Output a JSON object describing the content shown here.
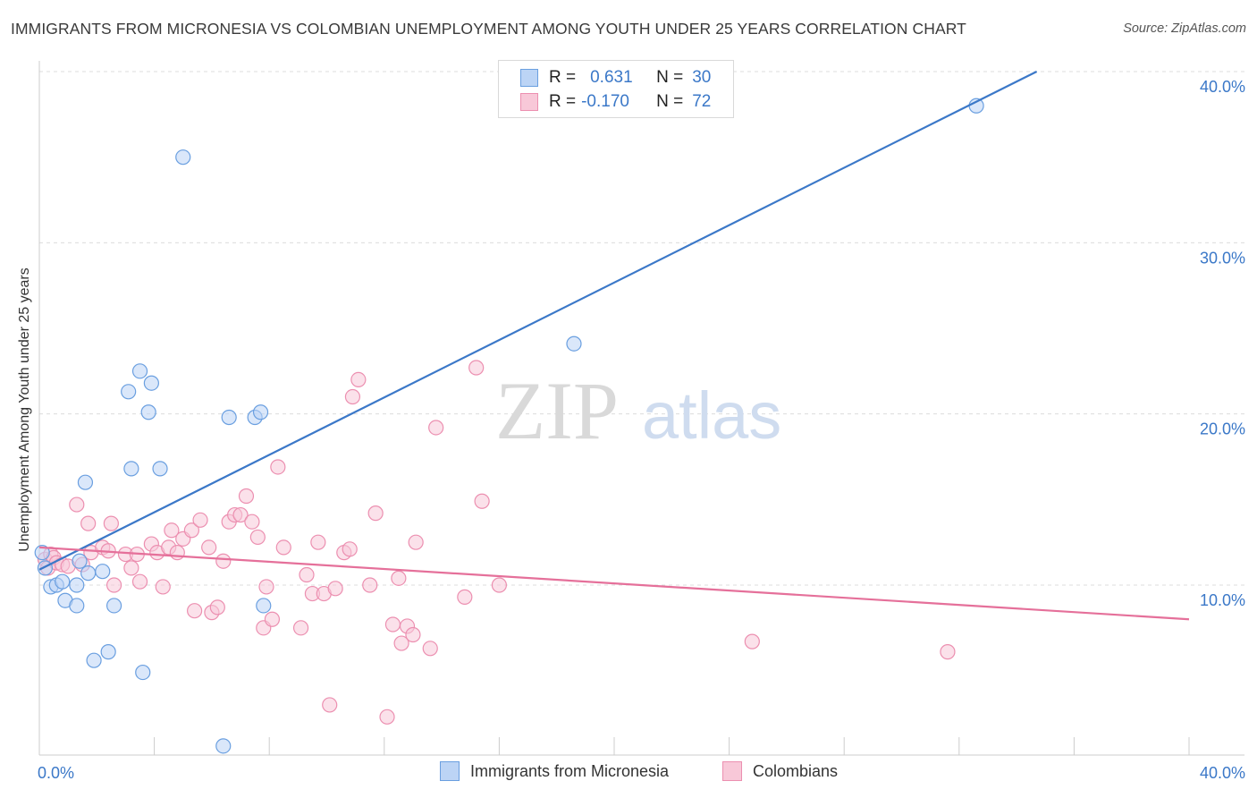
{
  "header": {
    "title": "IMMIGRANTS FROM MICRONESIA VS COLOMBIAN UNEMPLOYMENT AMONG YOUTH UNDER 25 YEARS CORRELATION CHART",
    "source": "Source: ZipAtlas.com"
  },
  "watermark": {
    "zip": "ZIP",
    "atlas": "atlas"
  },
  "legend": {
    "r_label": "R =",
    "n_label": "N =",
    "rows": [
      {
        "r": "0.631",
        "n": "30",
        "swatch_fill": "#bcd4f5",
        "swatch_stroke": "#6a9fe0"
      },
      {
        "r": "-0.170",
        "n": "72",
        "swatch_fill": "#f8c8d8",
        "swatch_stroke": "#ec8fb0"
      }
    ]
  },
  "chart_data": {
    "type": "scatter",
    "title": "IMMIGRANTS FROM MICRONESIA VS COLOMBIAN UNEMPLOYMENT AMONG YOUTH UNDER 25 YEARS CORRELATION CHART",
    "xlabel": "",
    "ylabel": "Unemployment Among Youth under 25 years",
    "xlim": [
      0,
      40
    ],
    "ylim": [
      0,
      41
    ],
    "x_tick_labels": [
      "0.0%",
      "40.0%"
    ],
    "y_ticks": [
      10,
      20,
      30,
      40
    ],
    "y_tick_labels": [
      "10.0%",
      "20.0%",
      "30.0%",
      "40.0%"
    ],
    "grid": "horizontal dashed",
    "legend_position": "top-center",
    "colors": {
      "micronesia": "#3b78c8",
      "colombians": "#e5709a"
    },
    "series": [
      {
        "name": "Immigrants from Micronesia",
        "color": "#6a9fe0",
        "fill": "#bcd4f5",
        "trend": [
          [
            0,
            10.9
          ],
          [
            34.7,
            40.0
          ]
        ],
        "points": [
          [
            0.1,
            11.9
          ],
          [
            0.2,
            11.0
          ],
          [
            0.4,
            9.9
          ],
          [
            0.6,
            10.0
          ],
          [
            0.8,
            10.2
          ],
          [
            0.9,
            9.1
          ],
          [
            1.3,
            10.0
          ],
          [
            1.3,
            8.8
          ],
          [
            1.4,
            11.4
          ],
          [
            1.6,
            16.0
          ],
          [
            1.7,
            10.7
          ],
          [
            1.9,
            5.6
          ],
          [
            2.2,
            10.8
          ],
          [
            2.4,
            6.1
          ],
          [
            2.6,
            8.8
          ],
          [
            3.1,
            21.3
          ],
          [
            3.2,
            16.8
          ],
          [
            3.5,
            22.5
          ],
          [
            3.6,
            4.9
          ],
          [
            3.8,
            20.1
          ],
          [
            3.9,
            21.8
          ],
          [
            4.2,
            16.8
          ],
          [
            5.0,
            35.0
          ],
          [
            6.4,
            0.6
          ],
          [
            6.6,
            19.8
          ],
          [
            7.5,
            19.8
          ],
          [
            7.7,
            20.1
          ],
          [
            7.8,
            8.8
          ],
          [
            18.6,
            24.1
          ],
          [
            32.6,
            38.0
          ]
        ]
      },
      {
        "name": "Colombians",
        "color": "#ec8fb0",
        "fill": "#f8c8d8",
        "trend": [
          [
            0,
            12.2
          ],
          [
            40,
            8.0
          ]
        ],
        "points": [
          [
            0.2,
            11.5
          ],
          [
            0.3,
            11.0
          ],
          [
            0.4,
            11.8
          ],
          [
            0.5,
            11.6
          ],
          [
            0.6,
            11.3
          ],
          [
            0.8,
            11.2
          ],
          [
            1.0,
            11.1
          ],
          [
            1.3,
            14.7
          ],
          [
            1.7,
            13.6
          ],
          [
            1.8,
            11.9
          ],
          [
            2.2,
            12.2
          ],
          [
            2.4,
            12.0
          ],
          [
            2.5,
            13.6
          ],
          [
            2.6,
            10.0
          ],
          [
            3.0,
            11.8
          ],
          [
            3.2,
            11.0
          ],
          [
            3.4,
            11.8
          ],
          [
            3.5,
            10.2
          ],
          [
            3.9,
            12.4
          ],
          [
            4.1,
            11.9
          ],
          [
            4.3,
            9.9
          ],
          [
            4.5,
            12.2
          ],
          [
            4.6,
            13.2
          ],
          [
            4.8,
            11.9
          ],
          [
            5.0,
            12.7
          ],
          [
            5.3,
            13.2
          ],
          [
            5.6,
            13.8
          ],
          [
            5.4,
            8.5
          ],
          [
            5.9,
            12.2
          ],
          [
            6.0,
            8.4
          ],
          [
            6.2,
            8.7
          ],
          [
            6.4,
            11.4
          ],
          [
            6.6,
            13.7
          ],
          [
            6.8,
            14.1
          ],
          [
            7.0,
            14.1
          ],
          [
            7.2,
            15.2
          ],
          [
            7.4,
            13.7
          ],
          [
            7.6,
            12.8
          ],
          [
            7.8,
            7.5
          ],
          [
            7.9,
            9.9
          ],
          [
            8.1,
            8.0
          ],
          [
            8.3,
            16.9
          ],
          [
            8.5,
            12.2
          ],
          [
            9.1,
            7.5
          ],
          [
            9.3,
            10.6
          ],
          [
            9.5,
            9.5
          ],
          [
            9.7,
            12.5
          ],
          [
            9.9,
            9.5
          ],
          [
            10.1,
            3.0
          ],
          [
            10.3,
            9.8
          ],
          [
            10.6,
            11.9
          ],
          [
            10.8,
            12.1
          ],
          [
            10.9,
            21.0
          ],
          [
            11.1,
            22.0
          ],
          [
            11.5,
            10.0
          ],
          [
            11.7,
            14.2
          ],
          [
            12.1,
            2.3
          ],
          [
            12.3,
            7.7
          ],
          [
            12.5,
            10.4
          ],
          [
            12.6,
            6.6
          ],
          [
            12.8,
            7.6
          ],
          [
            13.0,
            7.1
          ],
          [
            13.1,
            12.5
          ],
          [
            13.6,
            6.3
          ],
          [
            13.8,
            19.2
          ],
          [
            14.8,
            9.3
          ],
          [
            15.2,
            22.7
          ],
          [
            15.4,
            14.9
          ],
          [
            16.0,
            10.0
          ],
          [
            24.8,
            6.7
          ],
          [
            31.6,
            6.1
          ],
          [
            1.5,
            11.2
          ]
        ]
      }
    ]
  },
  "bottom_legend": [
    {
      "label": "Immigrants from Micronesia",
      "fill": "#bcd4f5",
      "stroke": "#6a9fe0"
    },
    {
      "label": "Colombians",
      "fill": "#f8c8d8",
      "stroke": "#ec8fb0"
    }
  ]
}
